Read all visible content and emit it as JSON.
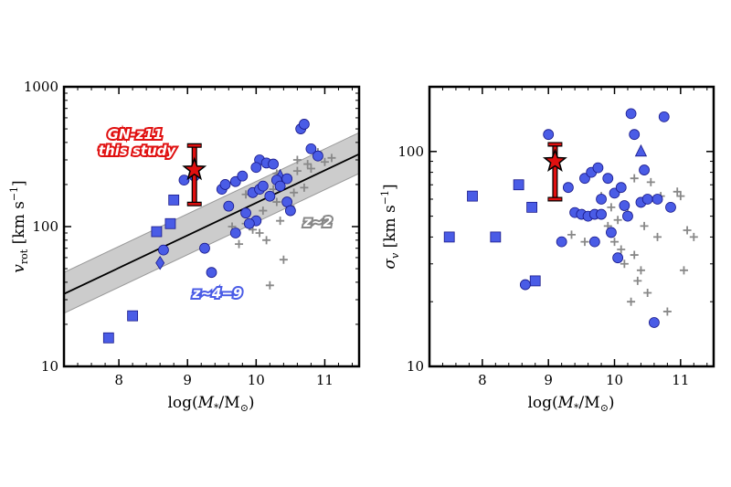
{
  "chart_data": [
    {
      "type": "scatter",
      "xlabel": "log(M_*/M_⊙)",
      "ylabel": "v_rot [km s^-1]",
      "xlim": [
        7.2,
        11.5
      ],
      "ylim": [
        10,
        1000
      ],
      "yscale": "log",
      "xticks": [
        "8",
        "9",
        "10",
        "11"
      ],
      "yticks": [
        "10",
        "100",
        "1000"
      ],
      "annotations": {
        "gn_title": "GN-z11",
        "gn_sub": "this study",
        "z2": "z∼2",
        "z49": "z∼4−9"
      },
      "colors": {
        "blue": "#4a5ce6",
        "gray": "#888888",
        "red": "#e01010",
        "band": "#cccccc"
      },
      "fit_line": {
        "x": [
          7.2,
          11.5
        ],
        "y": [
          33,
          330
        ]
      },
      "fit_band": {
        "x": [
          7.2,
          11.5
        ],
        "y_low": [
          24,
          240
        ],
        "y_high": [
          47,
          470
        ]
      },
      "gn_z11": {
        "x": 9.1,
        "y": 255,
        "y_low": 145,
        "y_high": 380
      },
      "series": [
        {
          "marker": "square",
          "color": "#4a5ce6",
          "points": [
            [
              7.85,
              16
            ],
            [
              8.2,
              23
            ],
            [
              8.55,
              92
            ],
            [
              8.75,
              105
            ],
            [
              8.8,
              155
            ]
          ]
        },
        {
          "marker": "diamond",
          "color": "#4a5ce6",
          "points": [
            [
              8.6,
              55
            ]
          ]
        },
        {
          "marker": "triangle",
          "color": "#4a5ce6",
          "points": [
            [
              10.35,
              230
            ]
          ]
        },
        {
          "marker": "circle",
          "color": "#4a5ce6",
          "points": [
            [
              8.65,
              68
            ],
            [
              8.95,
              215
            ],
            [
              9.1,
              230
            ],
            [
              9.25,
              70
            ],
            [
              9.35,
              47
            ],
            [
              9.5,
              185
            ],
            [
              9.55,
              200
            ],
            [
              9.6,
              140
            ],
            [
              9.7,
              90
            ],
            [
              9.7,
              210
            ],
            [
              9.8,
              230
            ],
            [
              9.85,
              125
            ],
            [
              9.95,
              175
            ],
            [
              10.0,
              110
            ],
            [
              10.05,
              300
            ],
            [
              10.05,
              185
            ],
            [
              10.1,
              195
            ],
            [
              10.15,
              285
            ],
            [
              10.2,
              165
            ],
            [
              10.25,
              280
            ],
            [
              10.3,
              215
            ],
            [
              10.35,
              195
            ],
            [
              10.45,
              220
            ],
            [
              10.45,
              150
            ],
            [
              10.5,
              130
            ],
            [
              10.65,
              500
            ],
            [
              10.7,
              540
            ],
            [
              10.8,
              360
            ],
            [
              10.9,
              320
            ],
            [
              10.0,
              265
            ],
            [
              9.9,
              105
            ]
          ]
        },
        {
          "marker": "plus",
          "color": "#888888",
          "points": [
            [
              9.65,
              100
            ],
            [
              9.75,
              75
            ],
            [
              9.85,
              105
            ],
            [
              9.95,
              95
            ],
            [
              10.05,
              90
            ],
            [
              10.1,
              130
            ],
            [
              10.15,
              80
            ],
            [
              10.2,
              38
            ],
            [
              10.25,
              185
            ],
            [
              10.3,
              150
            ],
            [
              10.35,
              110
            ],
            [
              10.4,
              58
            ],
            [
              10.5,
              140
            ],
            [
              10.55,
              175
            ],
            [
              10.6,
              250
            ],
            [
              10.7,
              190
            ],
            [
              10.75,
              280
            ],
            [
              10.8,
              260
            ],
            [
              10.9,
              340
            ],
            [
              11.0,
              290
            ],
            [
              11.1,
              310
            ],
            [
              10.6,
              300
            ],
            [
              9.85,
              170
            ],
            [
              10.3,
              240
            ]
          ]
        }
      ]
    },
    {
      "type": "scatter",
      "xlabel": "log(M_*/M_⊙)",
      "ylabel": "σ_v [km s^-1]",
      "xlim": [
        7.2,
        11.5
      ],
      "ylim": [
        10,
        200
      ],
      "yscale": "log",
      "xticks": [
        "8",
        "9",
        "10",
        "11"
      ],
      "yticks": [
        "10",
        "100"
      ],
      "colors": {
        "blue": "#4a5ce6",
        "gray": "#888888",
        "red": "#e01010"
      },
      "gn_z11": {
        "x": 9.1,
        "y": 90,
        "y_low": 60,
        "y_high": 108
      },
      "series": [
        {
          "marker": "square",
          "color": "#4a5ce6",
          "points": [
            [
              7.5,
              40
            ],
            [
              7.85,
              62
            ],
            [
              8.2,
              40
            ],
            [
              8.55,
              70
            ],
            [
              8.75,
              55
            ],
            [
              8.8,
              25
            ]
          ]
        },
        {
          "marker": "triangle",
          "color": "#4a5ce6",
          "points": [
            [
              10.4,
              100
            ]
          ]
        },
        {
          "marker": "circle",
          "color": "#4a5ce6",
          "points": [
            [
              8.65,
              24
            ],
            [
              9.0,
              120
            ],
            [
              9.2,
              38
            ],
            [
              9.3,
              68
            ],
            [
              9.4,
              52
            ],
            [
              9.5,
              51
            ],
            [
              9.55,
              75
            ],
            [
              9.6,
              50
            ],
            [
              9.65,
              80
            ],
            [
              9.7,
              51
            ],
            [
              9.7,
              38
            ],
            [
              9.75,
              84
            ],
            [
              9.8,
              60
            ],
            [
              9.8,
              51
            ],
            [
              9.9,
              75
            ],
            [
              9.95,
              42
            ],
            [
              10.0,
              64
            ],
            [
              10.05,
              32
            ],
            [
              10.1,
              68
            ],
            [
              10.15,
              56
            ],
            [
              10.2,
              50
            ],
            [
              10.25,
              150
            ],
            [
              10.3,
              120
            ],
            [
              10.4,
              58
            ],
            [
              10.45,
              82
            ],
            [
              10.5,
              60
            ],
            [
              10.6,
              16
            ],
            [
              10.65,
              60
            ],
            [
              10.75,
              145
            ],
            [
              10.85,
              55
            ]
          ]
        },
        {
          "marker": "plus",
          "color": "#888888",
          "points": [
            [
              9.35,
              41
            ],
            [
              9.55,
              38
            ],
            [
              9.8,
              62
            ],
            [
              9.95,
              55
            ],
            [
              10.0,
              38
            ],
            [
              10.05,
              48
            ],
            [
              10.1,
              35
            ],
            [
              10.15,
              30
            ],
            [
              10.2,
              52
            ],
            [
              10.25,
              20
            ],
            [
              10.3,
              33
            ],
            [
              10.35,
              25
            ],
            [
              10.4,
              28
            ],
            [
              10.45,
              45
            ],
            [
              10.5,
              22
            ],
            [
              10.55,
              72
            ],
            [
              10.6,
              60
            ],
            [
              10.65,
              40
            ],
            [
              10.7,
              62
            ],
            [
              10.8,
              18
            ],
            [
              10.95,
              65
            ],
            [
              11.0,
              62
            ],
            [
              11.05,
              28
            ],
            [
              11.1,
              43
            ],
            [
              11.2,
              40
            ],
            [
              10.3,
              75
            ],
            [
              9.9,
              45
            ]
          ]
        }
      ]
    }
  ]
}
